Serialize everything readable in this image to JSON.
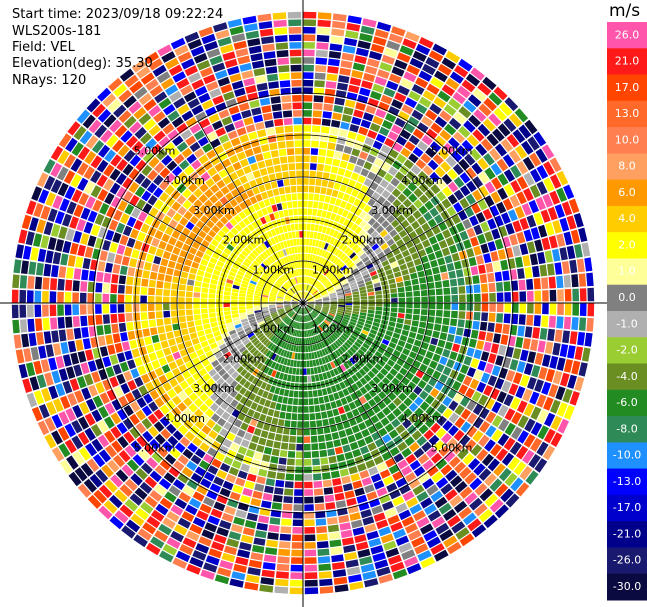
{
  "header": {
    "start_time": "Start time: 2023/09/18 09:22:24",
    "instrument": "WLS200s-181",
    "field": "Field: VEL",
    "elevation": "Elevation(deg): 35.30",
    "nrays": "NRays: 120"
  },
  "chart_data": {
    "type": "heatmap",
    "projection": "polar-ppi",
    "field": "VEL",
    "units": "m/s",
    "nrays": 120,
    "range_rings_km": [
      1,
      2,
      3,
      4,
      5
    ],
    "range_ring_labels": [
      "1.00km",
      "2.00km",
      "3.00km",
      "4.00km",
      "5.00km"
    ],
    "spoke_angles_deg": [
      0,
      30,
      60,
      90,
      120,
      150,
      180,
      210,
      240,
      270,
      300,
      330
    ],
    "max_range_km": 6.8,
    "colorbar": {
      "unit_label": "m/s",
      "tick_labels": [
        "26.0",
        "21.0",
        "17.0",
        "13.0",
        "10.0",
        "8.0",
        "6.0",
        "4.0",
        "2.0",
        "1.0",
        "0.0",
        "-1.0",
        "-2.0",
        "-4.0",
        "-6.0",
        "-8.0",
        "-10.0",
        "-13.0",
        "-17.0",
        "-21.0",
        "-26.0",
        "-30.0"
      ],
      "colors": [
        "#ff55aa",
        "#ff1a1a",
        "#ff4500",
        "#ff6a2a",
        "#ff7f50",
        "#ffa060",
        "#ff9900",
        "#ffcc00",
        "#ffff00",
        "#ffff99",
        "#808080",
        "#b0b0b0",
        "#9acd32",
        "#6b8e23",
        "#228b22",
        "#2e8b57",
        "#1e90ff",
        "#0000ff",
        "#0000cd",
        "#00008b",
        "#191970",
        "#0a0a40"
      ]
    },
    "velocity_pattern": {
      "inner_receding_sector_deg": [
        -90,
        90
      ],
      "inner_receding_max_ms": 4.0,
      "inner_approaching_max_ms": -6.0,
      "coherent_range_km": 4.2,
      "noise_beyond_km": 4.2
    }
  }
}
